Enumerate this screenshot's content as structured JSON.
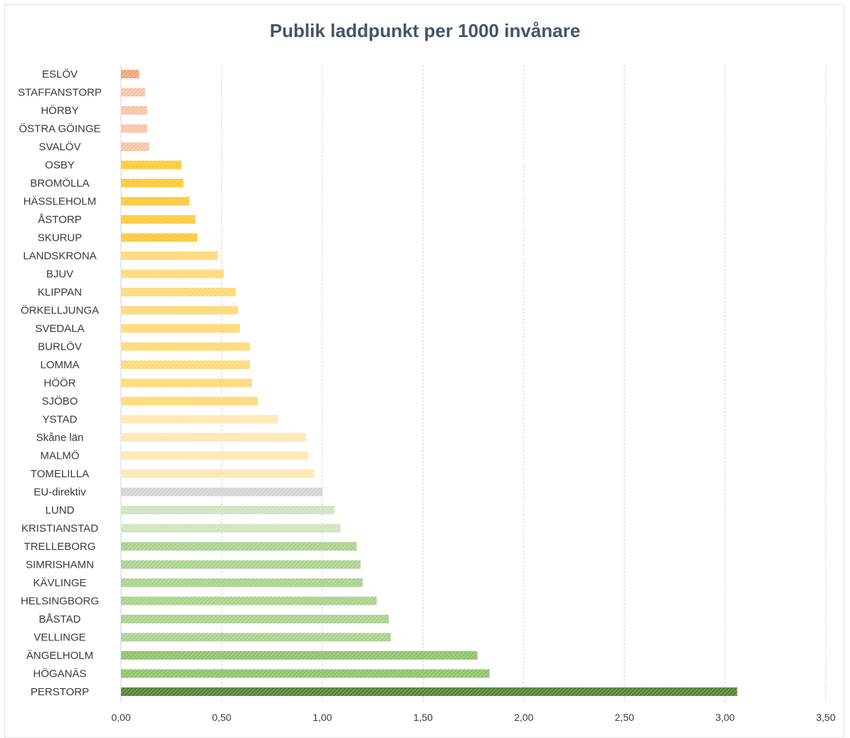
{
  "chart_data": {
    "type": "bar",
    "orientation": "horizontal",
    "title": "Publik laddpunkt per 1000 invånare",
    "xlabel": "",
    "ylabel": "",
    "xlim": [
      0,
      3.5
    ],
    "grid": true,
    "tick_labels": [
      "0,00",
      "0,50",
      "1,00",
      "1,50",
      "2,00",
      "2,50",
      "3,00",
      "3,50"
    ],
    "tick_values": [
      0,
      0.5,
      1.0,
      1.5,
      2.0,
      2.5,
      3.0,
      3.5
    ],
    "categories": [
      "ESLÖV",
      "STAFFANSTORP",
      "HÖRBY",
      "ÖSTRA GÖINGE",
      "SVALÖV",
      "OSBY",
      "BROMÖLLA",
      "HÄSSLEHOLM",
      "ÅSTORP",
      "SKURUP",
      "LANDSKRONA",
      "BJUV",
      "KLIPPAN",
      "ÖRKELLJUNGA",
      "SVEDALA",
      "BURLÖV",
      "LOMMA",
      "HÖÖR",
      "SJÖBO",
      "YSTAD",
      "Skåne län",
      "MALMÖ",
      "TOMELILLA",
      "EU-direktiv",
      "LUND",
      "KRISTIANSTAD",
      "TRELLEBORG",
      "SIMRISHAMN",
      "KÄVLINGE",
      "HELSINGBORG",
      "BÅSTAD",
      "VELLINGE",
      "ÄNGELHOLM",
      "HÖGANÄS",
      "PERSTORP"
    ],
    "values": [
      0.09,
      0.12,
      0.13,
      0.13,
      0.14,
      0.3,
      0.31,
      0.34,
      0.37,
      0.38,
      0.48,
      0.51,
      0.57,
      0.58,
      0.59,
      0.64,
      0.64,
      0.65,
      0.68,
      0.78,
      0.92,
      0.93,
      0.96,
      1.0,
      1.06,
      1.09,
      1.17,
      1.19,
      1.2,
      1.27,
      1.33,
      1.34,
      1.77,
      1.83,
      3.06
    ],
    "colors": [
      "#f0a57a",
      "#f5c4a8",
      "#f5c4a8",
      "#f5c4a8",
      "#f5c4a8",
      "#ffc936",
      "#ffc936",
      "#ffc936",
      "#ffc936",
      "#ffc936",
      "#ffd878",
      "#ffd878",
      "#ffd878",
      "#ffd878",
      "#ffd878",
      "#ffd878",
      "#ffd878",
      "#ffd878",
      "#ffd878",
      "#ffe7b0",
      "#ffe7b0",
      "#ffe7b0",
      "#ffe7b0",
      "#d4d4d4",
      "#cfe4bd",
      "#cfe4bd",
      "#a9d18e",
      "#a9d18e",
      "#a9d18e",
      "#a9d18e",
      "#a9d18e",
      "#a9d18e",
      "#8fc26a",
      "#8fc26a",
      "#548235"
    ]
  }
}
